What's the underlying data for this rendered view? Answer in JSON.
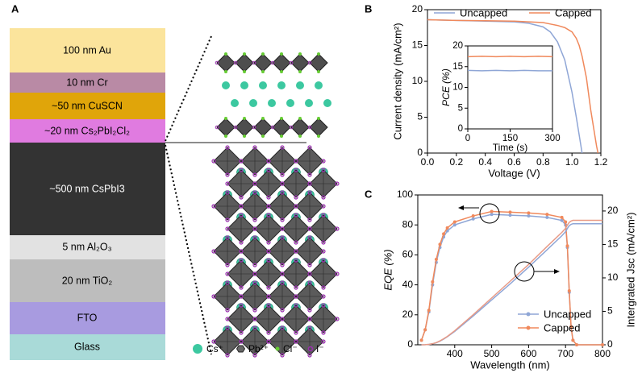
{
  "panel_labels": [
    "A",
    "B",
    "C"
  ],
  "panel_a": {
    "layers": [
      "100 nm Au",
      "10 nm Cr",
      "~50 nm CuSCN",
      "~20 nm Cs₂PbI₂Cl₂",
      "~500 nm CsPbI3",
      "5 nm Al₂O₃",
      "20 nm TiO₂",
      "FTO",
      "Glass"
    ],
    "legend": [
      "Cs⁺",
      "Pb²⁺",
      "Cl⁻",
      "I⁻"
    ]
  },
  "chart_data": [
    {
      "type": "line",
      "xlabel": "Voltage (V)",
      "ylabel": "Current density (mA/cm²)",
      "x": [
        0,
        0.2,
        0.4,
        0.6,
        0.7,
        0.8,
        0.85,
        0.9,
        0.95,
        1.0,
        1.03,
        1.05,
        1.07,
        1.1,
        1.13,
        1.15,
        1.17,
        1.18
      ],
      "series": [
        {
          "name": "Uncapped",
          "color": "#8fa6d6",
          "values": [
            18.6,
            18.5,
            18.4,
            18.3,
            18.1,
            17.6,
            16.9,
            15.5,
            13.0,
            8.5,
            5.0,
            2.5,
            0,
            null,
            null,
            null,
            null,
            null
          ]
        },
        {
          "name": "Capped",
          "color": "#f0895c",
          "values": [
            18.6,
            18.5,
            18.45,
            18.4,
            18.3,
            18.2,
            18.0,
            17.8,
            17.5,
            16.9,
            16.0,
            15.0,
            13.5,
            10.5,
            6.0,
            3.5,
            1.0,
            0
          ]
        }
      ],
      "xlim": [
        0,
        1.2
      ],
      "xticks": [
        {
          "value": 0,
          "label": "0.0"
        },
        0.2,
        0.4,
        0.6,
        0.8,
        {
          "value": 1,
          "label": "1.0"
        },
        1.2
      ],
      "ylim": [
        0,
        20
      ],
      "yticks": [
        0,
        5,
        10,
        15,
        20
      ],
      "legend": "top"
    },
    {
      "type": "line",
      "xlabel": "Time (s)",
      "ylabel": "PCE (%)",
      "x": [
        0,
        50,
        100,
        150,
        200,
        250,
        300
      ],
      "series": [
        {
          "color": "#8fa6d6",
          "values": [
            14.1,
            14.0,
            14.1,
            14.0,
            14.1,
            14.0,
            14.0
          ]
        },
        {
          "color": "#f0895c",
          "values": [
            17.4,
            17.5,
            17.4,
            17.5,
            17.4,
            17.5,
            17.4
          ]
        }
      ],
      "xlim": [
        0,
        300
      ],
      "xticks": [
        0,
        150,
        300
      ],
      "ylim": [
        0,
        20
      ],
      "yticks": [
        0,
        5,
        10,
        15,
        20
      ]
    },
    {
      "type": "line",
      "xlabel": "Wavelength (nm)",
      "ylabel": "EQE (%)",
      "y2label": "Intergrated Jsc (mA/cm²)",
      "x": [
        310,
        320,
        330,
        340,
        350,
        360,
        370,
        380,
        400,
        450,
        500,
        550,
        600,
        650,
        690,
        700,
        705,
        710,
        715,
        720,
        730,
        800
      ],
      "series": [
        {
          "name": "Uncapped",
          "color": "#8fa6d6",
          "markers": true,
          "values": [
            3,
            10,
            22,
            40,
            55,
            65,
            72,
            76,
            80,
            84,
            87,
            86.5,
            86,
            85,
            83,
            80,
            65,
            35,
            12,
            3,
            0,
            0
          ]
        },
        {
          "name": "Capped",
          "color": "#f0895c",
          "markers": true,
          "values": [
            3,
            10,
            23,
            42,
            57,
            67,
            74,
            78,
            82,
            86,
            89,
            88.5,
            88,
            87,
            85,
            82,
            66,
            36,
            12,
            3,
            0,
            0
          ]
        },
        {
          "color": "#8fa6d6",
          "axis": "y2",
          "values": [
            0,
            0.02,
            0.06,
            0.15,
            0.3,
            0.55,
            0.85,
            1.2,
            2.0,
            4.3,
            6.7,
            9.1,
            11.6,
            14.2,
            16.3,
            16.9,
            17.4,
            17.8,
            18.0,
            18.1,
            18.1,
            18.1
          ]
        },
        {
          "color": "#e89a86",
          "axis": "y2",
          "values": [
            0,
            0.02,
            0.06,
            0.16,
            0.32,
            0.58,
            0.9,
            1.25,
            2.1,
            4.5,
            7.0,
            9.5,
            12.0,
            14.7,
            16.8,
            17.4,
            17.9,
            18.3,
            18.5,
            18.6,
            18.6,
            18.6
          ]
        }
      ],
      "xlim": [
        300,
        800
      ],
      "xticks": [
        400,
        500,
        600,
        700,
        800
      ],
      "ylim": [
        0,
        100
      ],
      "yticks": [
        0,
        20,
        40,
        60,
        80,
        100
      ],
      "y2lim": [
        0,
        22.4
      ],
      "y2ticks": [
        0,
        5,
        10,
        15,
        20
      ],
      "legend": "lower right"
    }
  ]
}
